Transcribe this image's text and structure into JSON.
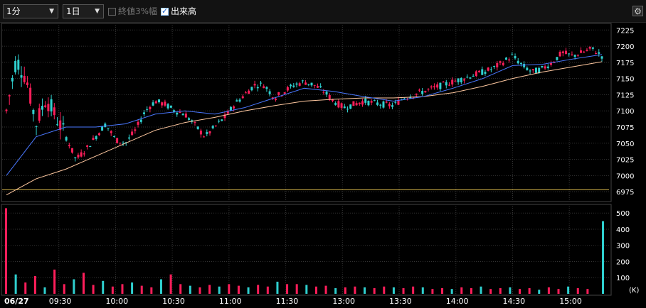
{
  "toolbar": {
    "interval": "1分",
    "period": "1日",
    "check_close": "終値3%幅",
    "check_close_checked": false,
    "check_volume": "出来高",
    "check_volume_checked": true,
    "settings_icon": "gear-icon"
  },
  "colors": {
    "up_candle": "#ff1e5a",
    "down_candle": "#2fd0cf",
    "ma_short": "#4a78ff",
    "ma_long": "#ffc8a0",
    "vwap_line": "#d4b44a",
    "volume_up": "#ff1e5a",
    "volume_down": "#2fd0cf"
  },
  "chart_data": [
    {
      "type": "candlestick",
      "name": "price",
      "x_tick_labels": [
        "06/27",
        "09:30",
        "10:00",
        "10:30",
        "11:00",
        "11:30",
        "13:00",
        "13:30",
        "14:00",
        "14:30",
        "15:00"
      ],
      "y_ticks": [
        6975,
        7000,
        7025,
        7050,
        7075,
        7100,
        7125,
        7150,
        7175,
        7200,
        7225
      ],
      "ylim": [
        6962,
        7233
      ],
      "horizontal_line": 6978,
      "path_points": [
        [
          0,
          7100
        ],
        [
          1,
          7180
        ],
        [
          2,
          7150
        ],
        [
          3,
          7080
        ],
        [
          4,
          7120
        ],
        [
          5,
          7090
        ],
        [
          6,
          7060
        ],
        [
          7,
          7025
        ],
        [
          8,
          7040
        ],
        [
          9,
          7060
        ],
        [
          10,
          7080
        ],
        [
          11,
          7055
        ],
        [
          12,
          7050
        ],
        [
          13,
          7070
        ],
        [
          14,
          7100
        ],
        [
          15,
          7115
        ],
        [
          16,
          7110
        ],
        [
          17,
          7100
        ],
        [
          18,
          7095
        ],
        [
          19,
          7078
        ],
        [
          20,
          7060
        ],
        [
          21,
          7075
        ],
        [
          22,
          7090
        ],
        [
          23,
          7110
        ],
        [
          24,
          7125
        ],
        [
          25,
          7140
        ],
        [
          26,
          7140
        ],
        [
          27,
          7120
        ],
        [
          28,
          7130
        ],
        [
          29,
          7140
        ],
        [
          30,
          7145
        ],
        [
          31,
          7140
        ],
        [
          32,
          7130
        ],
        [
          33,
          7115
        ],
        [
          34,
          7105
        ],
        [
          35,
          7110
        ],
        [
          36,
          7115
        ],
        [
          37,
          7112
        ],
        [
          38,
          7110
        ],
        [
          39,
          7108
        ],
        [
          40,
          7120
        ],
        [
          41,
          7125
        ],
        [
          42,
          7130
        ],
        [
          43,
          7135
        ],
        [
          44,
          7140
        ],
        [
          45,
          7145
        ],
        [
          46,
          7150
        ],
        [
          47,
          7155
        ],
        [
          48,
          7160
        ],
        [
          49,
          7165
        ],
        [
          50,
          7175
        ],
        [
          51,
          7185
        ],
        [
          52,
          7170
        ],
        [
          53,
          7160
        ],
        [
          54,
          7165
        ],
        [
          55,
          7175
        ],
        [
          56,
          7190
        ],
        [
          57,
          7185
        ],
        [
          58,
          7190
        ],
        [
          59,
          7196
        ],
        [
          60,
          7185
        ]
      ],
      "ma_short_points": [
        [
          0,
          7000
        ],
        [
          3,
          7060
        ],
        [
          6,
          7075
        ],
        [
          9,
          7075
        ],
        [
          12,
          7080
        ],
        [
          15,
          7095
        ],
        [
          18,
          7100
        ],
        [
          21,
          7095
        ],
        [
          24,
          7105
        ],
        [
          27,
          7120
        ],
        [
          30,
          7135
        ],
        [
          33,
          7130
        ],
        [
          36,
          7122
        ],
        [
          39,
          7115
        ],
        [
          42,
          7122
        ],
        [
          45,
          7135
        ],
        [
          48,
          7150
        ],
        [
          51,
          7170
        ],
        [
          54,
          7172
        ],
        [
          57,
          7180
        ],
        [
          60,
          7187
        ]
      ],
      "ma_long_points": [
        [
          0,
          6970
        ],
        [
          3,
          6995
        ],
        [
          6,
          7010
        ],
        [
          9,
          7030
        ],
        [
          12,
          7050
        ],
        [
          15,
          7070
        ],
        [
          18,
          7082
        ],
        [
          21,
          7090
        ],
        [
          24,
          7100
        ],
        [
          27,
          7108
        ],
        [
          30,
          7115
        ],
        [
          33,
          7118
        ],
        [
          36,
          7120
        ],
        [
          39,
          7120
        ],
        [
          42,
          7122
        ],
        [
          45,
          7128
        ],
        [
          48,
          7138
        ],
        [
          51,
          7150
        ],
        [
          54,
          7160
        ],
        [
          57,
          7168
        ],
        [
          60,
          7176
        ]
      ]
    },
    {
      "type": "bar",
      "name": "volume",
      "unit_label": "(K)",
      "y_ticks": [
        100,
        200,
        300,
        400,
        500
      ],
      "ylim": [
        0,
        545
      ],
      "values": [
        530,
        120,
        70,
        110,
        40,
        150,
        60,
        90,
        130,
        55,
        80,
        45,
        60,
        70,
        50,
        40,
        90,
        120,
        60,
        50,
        40,
        55,
        45,
        60,
        50,
        40,
        55,
        45,
        75,
        60,
        60,
        55,
        45,
        50,
        35,
        40,
        45,
        40,
        35,
        45,
        40,
        35,
        45,
        40,
        30,
        35,
        30,
        40,
        35,
        45,
        30,
        35,
        40,
        30,
        35,
        25,
        40,
        30,
        45,
        35,
        30,
        450
      ]
    }
  ]
}
